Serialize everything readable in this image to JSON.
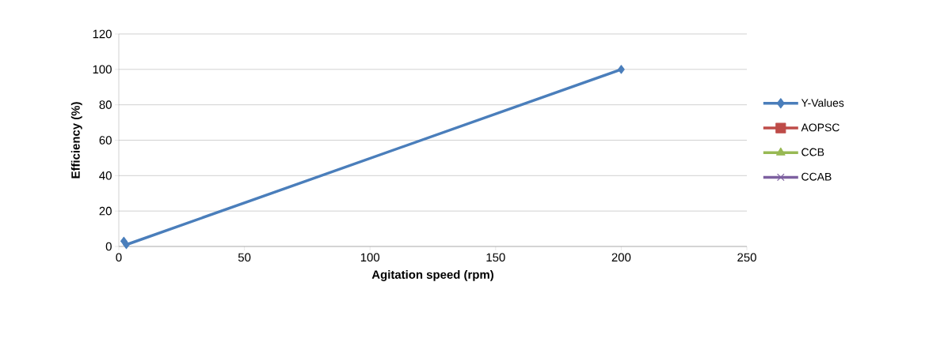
{
  "chart_data": {
    "type": "line",
    "xlabel": "Agitation speed (rpm)",
    "ylabel": "Efficiency (%)",
    "xlim": [
      0,
      250
    ],
    "xticks": [
      0,
      50,
      100,
      150,
      200,
      250
    ],
    "ylim": [
      0,
      120
    ],
    "yticks": [
      0,
      20,
      40,
      60,
      80,
      100,
      120
    ],
    "grid": "y",
    "legend": "right",
    "line_style": "solid",
    "series": [
      {
        "name": "Y-Values",
        "color": "#4a7ebb",
        "marker": "diamond",
        "x": [
          2,
          3,
          200
        ],
        "values": [
          3,
          1,
          100
        ]
      },
      {
        "name": "AOPSC",
        "color": "#be4b48",
        "marker": "square"
      },
      {
        "name": "CCB",
        "color": "#98b954",
        "marker": "triangle"
      },
      {
        "name": "CCAB",
        "color": "#7d60a0",
        "marker": "cross"
      }
    ]
  }
}
